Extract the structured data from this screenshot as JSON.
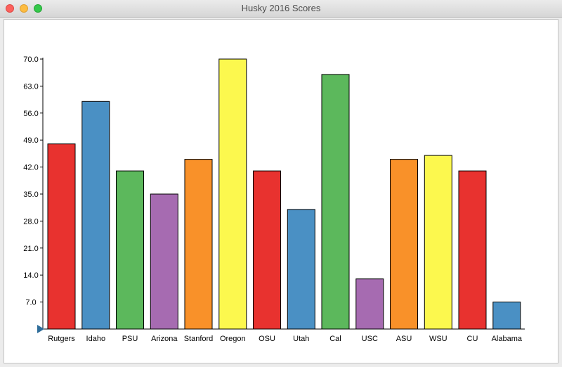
{
  "window": {
    "title": "Husky 2016 Scores"
  },
  "chart_data": {
    "type": "bar",
    "title": "Husky 2016 Scores",
    "xlabel": "",
    "ylabel": "",
    "ylim": [
      0,
      70
    ],
    "y_ticks": [
      "7.0",
      "14.0",
      "21.0",
      "28.0",
      "35.0",
      "42.0",
      "49.0",
      "56.0",
      "63.0",
      "70.0"
    ],
    "y_tick_values": [
      7,
      14,
      21,
      28,
      35,
      42,
      49,
      56,
      63,
      70
    ],
    "categories": [
      "Rutgers",
      "Idaho",
      "PSU",
      "Arizona",
      "Stanford",
      "Oregon",
      "OSU",
      "Utah",
      "Cal",
      "USC",
      "ASU",
      "WSU",
      "CU",
      "Alabama"
    ],
    "values": [
      48,
      59,
      41,
      35,
      44,
      70,
      41,
      31,
      66,
      13,
      44,
      45,
      41,
      7
    ],
    "colors": [
      "#e8322f",
      "#4a90c4",
      "#5cb85c",
      "#a66bb1",
      "#f99129",
      "#fcf84e",
      "#e8322f",
      "#4a90c4",
      "#5cb85c",
      "#a66bb1",
      "#f99129",
      "#fcf84e",
      "#e8322f",
      "#4a90c4"
    ],
    "grid": false
  }
}
